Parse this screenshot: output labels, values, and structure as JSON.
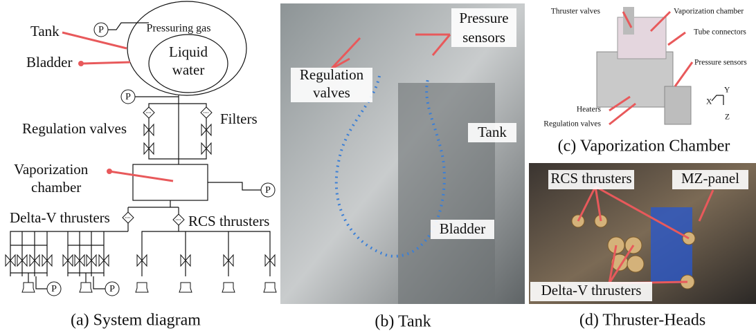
{
  "panel_a": {
    "caption": "(a) System diagram",
    "tank": "Tank",
    "bladder": "Bladder",
    "pressuring_gas": "Pressuring gas",
    "liquid_water": [
      "Liquid",
      "water"
    ],
    "pressure_symbol": "P",
    "regulation_valves": "Regulation valves",
    "filters": "Filters",
    "vaporization_chamber": [
      "Vaporization",
      "chamber"
    ],
    "delta_v_thrusters": "Delta-V thrusters",
    "rcs_thrusters": "RCS thrusters"
  },
  "panel_b": {
    "caption": "(b) Tank",
    "regulation_valves": [
      "Regulation",
      "valves"
    ],
    "pressure_sensors": [
      "Pressure",
      "sensors"
    ],
    "tank": "Tank",
    "bladder": "Bladder"
  },
  "panel_c": {
    "caption": "(c) Vaporization Chamber",
    "labels": [
      "Thruster valves",
      "Vaporization chamber",
      "Tube connectors",
      "Pressure sensors",
      "Heaters",
      "Regulation valves"
    ],
    "axes": [
      "Y",
      "X",
      "Z"
    ]
  },
  "panel_d": {
    "caption": "(d) Thruster-Heads",
    "rcs_thrusters": "RCS thrusters",
    "mz_panel": "MZ-panel",
    "delta_v_thrusters": "Delta-V thrusters"
  }
}
